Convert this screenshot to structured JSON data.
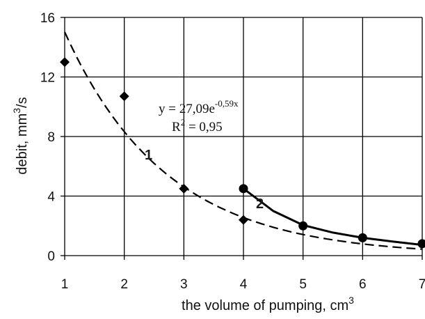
{
  "chart_data": {
    "type": "scatter",
    "xlabel": "the volume of pumping, cm",
    "xlabel_sup": "3",
    "ylabel": "debit, mm",
    "ylabel_sup": "3",
    "ylabel_suffix": "/s",
    "xlim": [
      1,
      7
    ],
    "ylim": [
      0,
      16
    ],
    "x_ticks": [
      1,
      2,
      3,
      4,
      5,
      6,
      7
    ],
    "y_ticks": [
      0,
      4,
      8,
      12,
      16
    ],
    "grid": true,
    "series": [
      {
        "marker": "diamond",
        "x": [
          1,
          2,
          3,
          4
        ],
        "y": [
          13.0,
          10.7,
          4.5,
          2.4
        ]
      },
      {
        "marker": "circle",
        "x": [
          4,
          5,
          6,
          7
        ],
        "y": [
          4.5,
          2.0,
          1.2,
          0.8
        ]
      }
    ],
    "trendlines": [
      {
        "style": "dashed",
        "formula": "27.09*exp(-0.59x)",
        "a": 27.09,
        "b": -0.59,
        "x_range": [
          1,
          7
        ]
      },
      {
        "style": "solid",
        "points": [
          [
            4,
            4.5
          ],
          [
            4.5,
            3.0
          ],
          [
            5,
            2.05
          ],
          [
            5.5,
            1.55
          ],
          [
            6,
            1.2
          ],
          [
            6.5,
            0.95
          ],
          [
            7,
            0.72
          ]
        ]
      }
    ],
    "annotations": {
      "equation_prefix": "y = 27,09e",
      "equation_exp": "-0,59x",
      "r2_prefix": "R",
      "r2_sup": "2",
      "r2_suffix": " = 0,95",
      "label_1": "1",
      "label_2": "2"
    }
  }
}
